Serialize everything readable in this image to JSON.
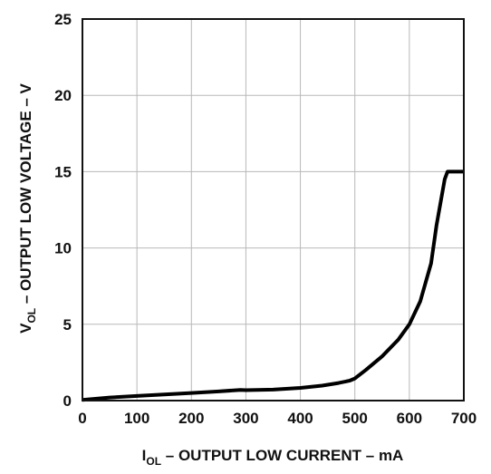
{
  "chart_data": {
    "type": "line",
    "title": "",
    "xlabel": {
      "prefix": "I",
      "subscript": "OL",
      "text": " – OUTPUT LOW CURRENT – mA"
    },
    "ylabel": {
      "prefix": "V",
      "subscript": "OL",
      "text": " – OUTPUT LOW VOLTAGE – V"
    },
    "xlim": [
      0,
      700
    ],
    "ylim": [
      0,
      25
    ],
    "xticks": [
      "0",
      "100",
      "200",
      "300",
      "400",
      "500",
      "600",
      "700"
    ],
    "yticks": [
      "0",
      "5",
      "10",
      "15",
      "20",
      "25"
    ],
    "grid": true,
    "legend": "none",
    "line_color": "#000000",
    "series": [
      {
        "x": [
          0,
          50,
          100,
          150,
          200,
          250,
          290,
          300,
          350,
          400,
          440,
          470,
          490,
          500,
          520,
          550,
          580,
          600,
          620,
          640,
          650,
          660,
          665,
          670,
          680,
          700
        ],
        "y": [
          0.05,
          0.2,
          0.3,
          0.4,
          0.5,
          0.6,
          0.7,
          0.68,
          0.72,
          0.83,
          0.98,
          1.15,
          1.3,
          1.45,
          2.0,
          2.9,
          4.0,
          5.0,
          6.5,
          9.0,
          11.5,
          13.5,
          14.5,
          15.0,
          15.0,
          15.0
        ]
      }
    ]
  }
}
